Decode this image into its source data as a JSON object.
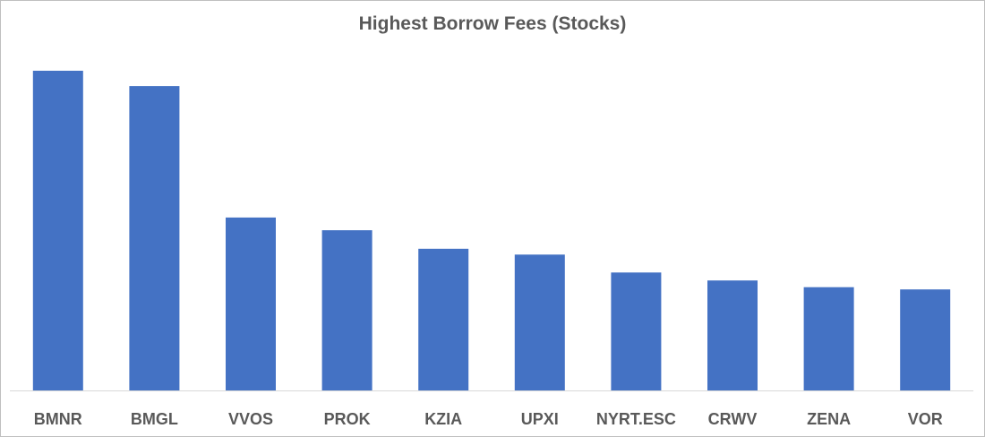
{
  "chart_data": {
    "type": "bar",
    "title": "Highest Borrow Fees (Stocks)",
    "categories": [
      "BMNR",
      "BMGL",
      "VVOS",
      "PROK",
      "KZIA",
      "UPXI",
      "NYRT.ESC",
      "CRWV",
      "ZENA",
      "VOR"
    ],
    "values": [
      100,
      95.2,
      54.1,
      50.1,
      44.3,
      42.5,
      36.9,
      34.4,
      32.3,
      31.6
    ],
    "ylim": [
      0,
      100
    ],
    "grid": false,
    "legend": "none",
    "bar_color": "#4472c4",
    "axis_color": "#d9d9d9"
  }
}
